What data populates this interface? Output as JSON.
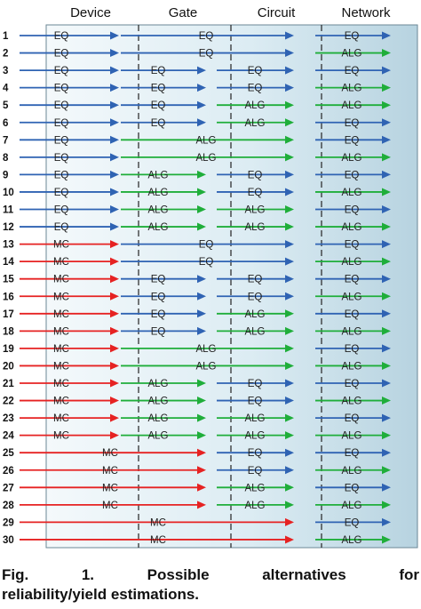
{
  "diagram": {
    "columns": [
      "Device",
      "Gate",
      "Circuit",
      "Network"
    ],
    "colors": {
      "EQ": "#2f63b3",
      "ALG": "#1fae3a",
      "MC": "#e62222"
    },
    "rows": [
      {
        "n": "1",
        "segments": [
          {
            "label": "EQ",
            "from": 0,
            "to": 1
          },
          {
            "label": "EQ",
            "from": 1,
            "to": 3
          },
          {
            "label": "EQ",
            "from": 3,
            "to": 4
          }
        ]
      },
      {
        "n": "2",
        "segments": [
          {
            "label": "EQ",
            "from": 0,
            "to": 1
          },
          {
            "label": "EQ",
            "from": 1,
            "to": 3
          },
          {
            "label": "ALG",
            "from": 3,
            "to": 4
          }
        ]
      },
      {
        "n": "3",
        "segments": [
          {
            "label": "EQ",
            "from": 0,
            "to": 1
          },
          {
            "label": "EQ",
            "from": 1,
            "to": 2
          },
          {
            "label": "EQ",
            "from": 2,
            "to": 3
          },
          {
            "label": "EQ",
            "from": 3,
            "to": 4
          }
        ]
      },
      {
        "n": "4",
        "segments": [
          {
            "label": "EQ",
            "from": 0,
            "to": 1
          },
          {
            "label": "EQ",
            "from": 1,
            "to": 2
          },
          {
            "label": "EQ",
            "from": 2,
            "to": 3
          },
          {
            "label": "ALG",
            "from": 3,
            "to": 4
          }
        ]
      },
      {
        "n": "5",
        "segments": [
          {
            "label": "EQ",
            "from": 0,
            "to": 1
          },
          {
            "label": "EQ",
            "from": 1,
            "to": 2
          },
          {
            "label": "ALG",
            "from": 2,
            "to": 3
          },
          {
            "label": "ALG",
            "from": 3,
            "to": 4
          }
        ]
      },
      {
        "n": "6",
        "segments": [
          {
            "label": "EQ",
            "from": 0,
            "to": 1
          },
          {
            "label": "EQ",
            "from": 1,
            "to": 2
          },
          {
            "label": "ALG",
            "from": 2,
            "to": 3
          },
          {
            "label": "EQ",
            "from": 3,
            "to": 4
          }
        ]
      },
      {
        "n": "7",
        "segments": [
          {
            "label": "EQ",
            "from": 0,
            "to": 1
          },
          {
            "label": "ALG",
            "from": 1,
            "to": 3
          },
          {
            "label": "EQ",
            "from": 3,
            "to": 4
          }
        ]
      },
      {
        "n": "8",
        "segments": [
          {
            "label": "EQ",
            "from": 0,
            "to": 1
          },
          {
            "label": "ALG",
            "from": 1,
            "to": 3
          },
          {
            "label": "ALG",
            "from": 3,
            "to": 4
          }
        ]
      },
      {
        "n": "9",
        "segments": [
          {
            "label": "EQ",
            "from": 0,
            "to": 1
          },
          {
            "label": "ALG",
            "from": 1,
            "to": 2
          },
          {
            "label": "EQ",
            "from": 2,
            "to": 3
          },
          {
            "label": "EQ",
            "from": 3,
            "to": 4
          }
        ]
      },
      {
        "n": "10",
        "segments": [
          {
            "label": "EQ",
            "from": 0,
            "to": 1
          },
          {
            "label": "ALG",
            "from": 1,
            "to": 2
          },
          {
            "label": "EQ",
            "from": 2,
            "to": 3
          },
          {
            "label": "ALG",
            "from": 3,
            "to": 4
          }
        ]
      },
      {
        "n": "11",
        "segments": [
          {
            "label": "EQ",
            "from": 0,
            "to": 1
          },
          {
            "label": "ALG",
            "from": 1,
            "to": 2
          },
          {
            "label": "ALG",
            "from": 2,
            "to": 3
          },
          {
            "label": "EQ",
            "from": 3,
            "to": 4
          }
        ]
      },
      {
        "n": "12",
        "segments": [
          {
            "label": "EQ",
            "from": 0,
            "to": 1
          },
          {
            "label": "ALG",
            "from": 1,
            "to": 2
          },
          {
            "label": "ALG",
            "from": 2,
            "to": 3
          },
          {
            "label": "ALG",
            "from": 3,
            "to": 4
          }
        ]
      },
      {
        "n": "13",
        "segments": [
          {
            "label": "MC",
            "from": 0,
            "to": 1
          },
          {
            "label": "EQ",
            "from": 1,
            "to": 3
          },
          {
            "label": "EQ",
            "from": 3,
            "to": 4
          }
        ]
      },
      {
        "n": "14",
        "segments": [
          {
            "label": "MC",
            "from": 0,
            "to": 1
          },
          {
            "label": "EQ",
            "from": 1,
            "to": 3
          },
          {
            "label": "ALG",
            "from": 3,
            "to": 4
          }
        ]
      },
      {
        "n": "15",
        "segments": [
          {
            "label": "MC",
            "from": 0,
            "to": 1
          },
          {
            "label": "EQ",
            "from": 1,
            "to": 2
          },
          {
            "label": "EQ",
            "from": 2,
            "to": 3
          },
          {
            "label": "EQ",
            "from": 3,
            "to": 4
          }
        ]
      },
      {
        "n": "16",
        "segments": [
          {
            "label": "MC",
            "from": 0,
            "to": 1
          },
          {
            "label": "EQ",
            "from": 1,
            "to": 2
          },
          {
            "label": "EQ",
            "from": 2,
            "to": 3
          },
          {
            "label": "ALG",
            "from": 3,
            "to": 4
          }
        ]
      },
      {
        "n": "17",
        "segments": [
          {
            "label": "MC",
            "from": 0,
            "to": 1
          },
          {
            "label": "EQ",
            "from": 1,
            "to": 2
          },
          {
            "label": "ALG",
            "from": 2,
            "to": 3
          },
          {
            "label": "EQ",
            "from": 3,
            "to": 4
          }
        ]
      },
      {
        "n": "18",
        "segments": [
          {
            "label": "MC",
            "from": 0,
            "to": 1
          },
          {
            "label": "EQ",
            "from": 1,
            "to": 2
          },
          {
            "label": "ALG",
            "from": 2,
            "to": 3
          },
          {
            "label": "ALG",
            "from": 3,
            "to": 4
          }
        ]
      },
      {
        "n": "19",
        "segments": [
          {
            "label": "MC",
            "from": 0,
            "to": 1
          },
          {
            "label": "ALG",
            "from": 1,
            "to": 3
          },
          {
            "label": "EQ",
            "from": 3,
            "to": 4
          }
        ]
      },
      {
        "n": "20",
        "segments": [
          {
            "label": "MC",
            "from": 0,
            "to": 1
          },
          {
            "label": "ALG",
            "from": 1,
            "to": 3
          },
          {
            "label": "ALG",
            "from": 3,
            "to": 4
          }
        ]
      },
      {
        "n": "21",
        "segments": [
          {
            "label": "MC",
            "from": 0,
            "to": 1
          },
          {
            "label": "ALG",
            "from": 1,
            "to": 2
          },
          {
            "label": "EQ",
            "from": 2,
            "to": 3
          },
          {
            "label": "EQ",
            "from": 3,
            "to": 4
          }
        ]
      },
      {
        "n": "22",
        "segments": [
          {
            "label": "MC",
            "from": 0,
            "to": 1
          },
          {
            "label": "ALG",
            "from": 1,
            "to": 2
          },
          {
            "label": "EQ",
            "from": 2,
            "to": 3
          },
          {
            "label": "ALG",
            "from": 3,
            "to": 4
          }
        ]
      },
      {
        "n": "23",
        "segments": [
          {
            "label": "MC",
            "from": 0,
            "to": 1
          },
          {
            "label": "ALG",
            "from": 1,
            "to": 2
          },
          {
            "label": "ALG",
            "from": 2,
            "to": 3
          },
          {
            "label": "EQ",
            "from": 3,
            "to": 4
          }
        ]
      },
      {
        "n": "24",
        "segments": [
          {
            "label": "MC",
            "from": 0,
            "to": 1
          },
          {
            "label": "ALG",
            "from": 1,
            "to": 2
          },
          {
            "label": "ALG",
            "from": 2,
            "to": 3
          },
          {
            "label": "ALG",
            "from": 3,
            "to": 4
          }
        ]
      },
      {
        "n": "25",
        "segments": [
          {
            "label": "MC",
            "from": 0,
            "to": 2
          },
          {
            "label": "EQ",
            "from": 2,
            "to": 3
          },
          {
            "label": "EQ",
            "from": 3,
            "to": 4
          }
        ]
      },
      {
        "n": "26",
        "segments": [
          {
            "label": "MC",
            "from": 0,
            "to": 2
          },
          {
            "label": "EQ",
            "from": 2,
            "to": 3
          },
          {
            "label": "ALG",
            "from": 3,
            "to": 4
          }
        ]
      },
      {
        "n": "27",
        "segments": [
          {
            "label": "MC",
            "from": 0,
            "to": 2
          },
          {
            "label": "ALG",
            "from": 2,
            "to": 3
          },
          {
            "label": "EQ",
            "from": 3,
            "to": 4
          }
        ]
      },
      {
        "n": "28",
        "segments": [
          {
            "label": "MC",
            "from": 0,
            "to": 2
          },
          {
            "label": "ALG",
            "from": 2,
            "to": 3
          },
          {
            "label": "ALG",
            "from": 3,
            "to": 4
          }
        ]
      },
      {
        "n": "29",
        "segments": [
          {
            "label": "MC",
            "from": 0,
            "to": 3
          },
          {
            "label": "EQ",
            "from": 3,
            "to": 4
          }
        ]
      },
      {
        "n": "30",
        "segments": [
          {
            "label": "MC",
            "from": 0,
            "to": 3
          },
          {
            "label": "ALG",
            "from": 3,
            "to": 4
          }
        ]
      }
    ]
  },
  "caption": {
    "words": [
      "Fig.",
      "1.",
      "Possible",
      "alternatives",
      "for"
    ],
    "line2": "reliability/yield estimations."
  }
}
